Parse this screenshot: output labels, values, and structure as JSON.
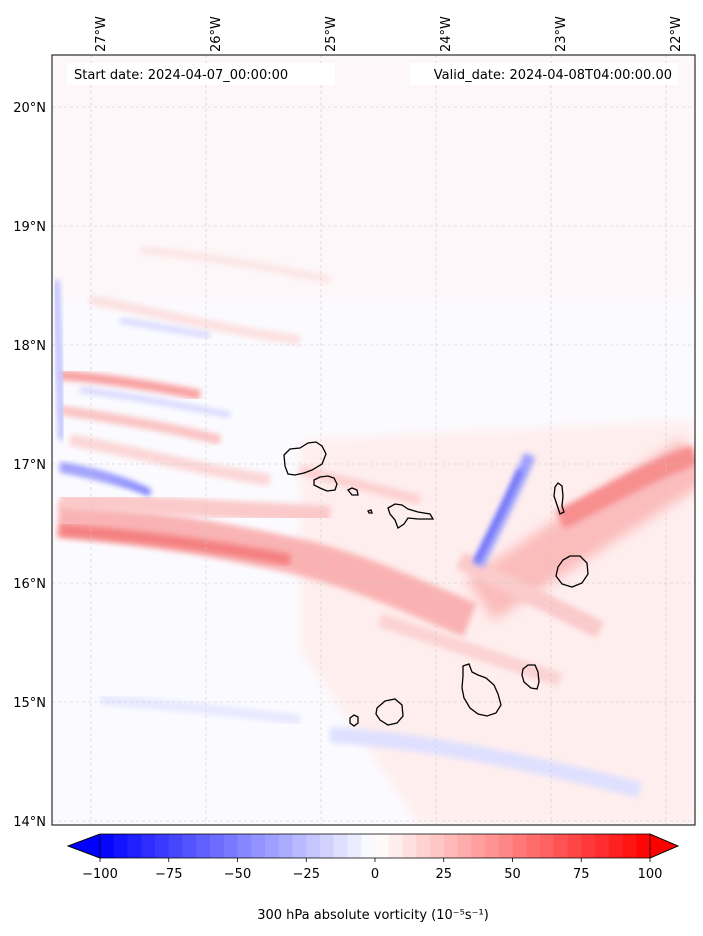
{
  "map": {
    "start_date": "Start date: 2024-04-07_00:00:00",
    "valid_date": "Valid_date: 2024-04-08T04:00:00.00",
    "extent": {
      "lon_min": -27.33,
      "lon_max": -21.76,
      "lat_min": 13.95,
      "lat_max": 20.44
    },
    "lon_ticks": [
      {
        "value": -27,
        "label": "27°W"
      },
      {
        "value": -26,
        "label": "26°W"
      },
      {
        "value": -25,
        "label": "25°W"
      },
      {
        "value": -24,
        "label": "24°W"
      },
      {
        "value": -23,
        "label": "23°W"
      },
      {
        "value": -22,
        "label": "22°W"
      }
    ],
    "lat_ticks": [
      {
        "value": 20,
        "label": "20°N"
      },
      {
        "value": 19,
        "label": "19°N"
      },
      {
        "value": 18,
        "label": "18°N"
      },
      {
        "value": 17,
        "label": "17°N"
      },
      {
        "value": 16,
        "label": "16°N"
      },
      {
        "value": 15,
        "label": "15°N"
      },
      {
        "value": 14,
        "label": "14°N"
      }
    ],
    "islands": [
      "Santo Antão",
      "São Vicente",
      "Santa Luzia",
      "Branco",
      "São Nicolau",
      "Sal",
      "Boa Vista",
      "Maio",
      "Santiago",
      "Fogo",
      "Brava"
    ]
  },
  "colorbar": {
    "label": "300 hPa absolute vorticity (10⁻⁵s⁻¹)",
    "vmin": -100,
    "vmax": 100,
    "colormap": "bwr",
    "extend": "both",
    "ticks": [
      {
        "value": -100,
        "label": "−100"
      },
      {
        "value": -75,
        "label": "−75"
      },
      {
        "value": -50,
        "label": "−50"
      },
      {
        "value": -25,
        "label": "−25"
      },
      {
        "value": 0,
        "label": "0"
      },
      {
        "value": 25,
        "label": "25"
      },
      {
        "value": 50,
        "label": "50"
      },
      {
        "value": 75,
        "label": "75"
      },
      {
        "value": 100,
        "label": "100"
      }
    ]
  }
}
